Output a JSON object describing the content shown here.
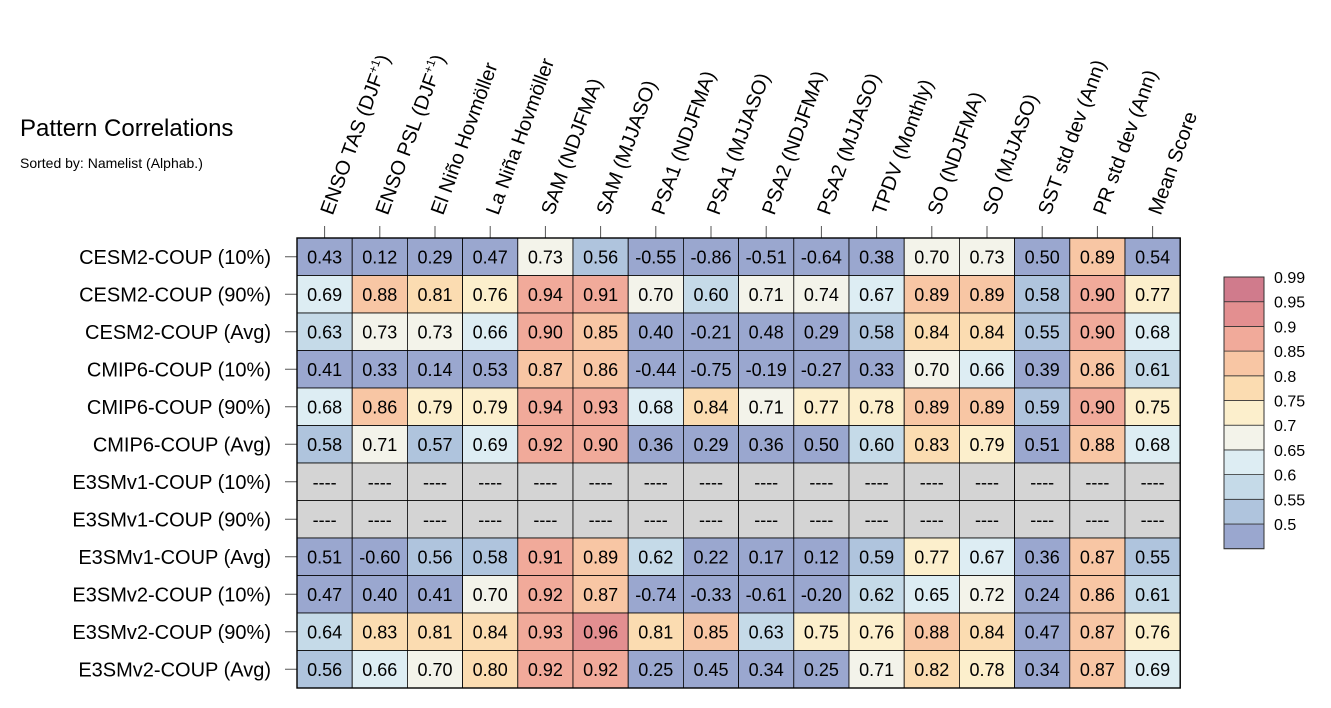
{
  "chart_data": {
    "type": "heatmap",
    "title": "Pattern Correlations",
    "subtitle": "Sorted by: Namelist (Alphab.)",
    "columns": [
      {
        "base": "ENSO TAS (DJF",
        "sup": "+1",
        "tail": ")"
      },
      {
        "base": "ENSO PSL (DJF",
        "sup": "+1",
        "tail": ")"
      },
      {
        "base": "El Niño Hovmöller",
        "sup": "",
        "tail": ""
      },
      {
        "base": "La Niña Hovmöller",
        "sup": "",
        "tail": ""
      },
      {
        "base": "SAM (NDJFMA)",
        "sup": "",
        "tail": ""
      },
      {
        "base": "SAM (MJJASO)",
        "sup": "",
        "tail": ""
      },
      {
        "base": "PSA1 (NDJFMA)",
        "sup": "",
        "tail": ""
      },
      {
        "base": "PSA1 (MJJASO)",
        "sup": "",
        "tail": ""
      },
      {
        "base": "PSA2 (NDJFMA)",
        "sup": "",
        "tail": ""
      },
      {
        "base": "PSA2 (MJJASO)",
        "sup": "",
        "tail": ""
      },
      {
        "base": "TPDV (Monthly)",
        "sup": "",
        "tail": ""
      },
      {
        "base": "SO (NDJFMA)",
        "sup": "",
        "tail": ""
      },
      {
        "base": "SO (MJJASO)",
        "sup": "",
        "tail": ""
      },
      {
        "base": "SST std dev (Ann)",
        "sup": "",
        "tail": ""
      },
      {
        "base": "PR std dev (Ann)",
        "sup": "",
        "tail": ""
      },
      {
        "base": "Mean Score",
        "sup": "",
        "tail": ""
      }
    ],
    "rows": [
      "CESM2-COUP (10%)",
      "CESM2-COUP (90%)",
      "CESM2-COUP (Avg)",
      "CMIP6-COUP (10%)",
      "CMIP6-COUP (90%)",
      "CMIP6-COUP (Avg)",
      "E3SMv1-COUP (10%)",
      "E3SMv1-COUP (90%)",
      "E3SMv1-COUP (Avg)",
      "E3SMv2-COUP (10%)",
      "E3SMv2-COUP (90%)",
      "E3SMv2-COUP (Avg)"
    ],
    "values": [
      [
        0.43,
        0.12,
        0.29,
        0.47,
        0.73,
        0.56,
        -0.55,
        -0.86,
        -0.51,
        -0.64,
        0.38,
        0.7,
        0.73,
        0.5,
        0.89,
        0.54
      ],
      [
        0.69,
        0.88,
        0.81,
        0.76,
        0.94,
        0.91,
        0.7,
        0.6,
        0.71,
        0.74,
        0.67,
        0.89,
        0.89,
        0.58,
        0.9,
        0.77
      ],
      [
        0.63,
        0.73,
        0.73,
        0.66,
        0.9,
        0.85,
        0.4,
        -0.21,
        0.48,
        0.29,
        0.58,
        0.84,
        0.84,
        0.55,
        0.9,
        0.68
      ],
      [
        0.41,
        0.33,
        0.14,
        0.53,
        0.87,
        0.86,
        -0.44,
        -0.75,
        -0.19,
        -0.27,
        0.33,
        0.7,
        0.66,
        0.39,
        0.86,
        0.61
      ],
      [
        0.68,
        0.86,
        0.79,
        0.79,
        0.94,
        0.93,
        0.68,
        0.84,
        0.71,
        0.77,
        0.78,
        0.89,
        0.89,
        0.59,
        0.9,
        0.75
      ],
      [
        0.58,
        0.71,
        0.57,
        0.69,
        0.92,
        0.9,
        0.36,
        0.29,
        0.36,
        0.5,
        0.6,
        0.83,
        0.79,
        0.51,
        0.88,
        0.68
      ],
      [
        null,
        null,
        null,
        null,
        null,
        null,
        null,
        null,
        null,
        null,
        null,
        null,
        null,
        null,
        null,
        null
      ],
      [
        null,
        null,
        null,
        null,
        null,
        null,
        null,
        null,
        null,
        null,
        null,
        null,
        null,
        null,
        null,
        null
      ],
      [
        0.51,
        -0.6,
        0.56,
        0.58,
        0.91,
        0.89,
        0.62,
        0.22,
        0.17,
        0.12,
        0.59,
        0.77,
        0.67,
        0.36,
        0.87,
        0.55
      ],
      [
        0.47,
        0.4,
        0.41,
        0.7,
        0.92,
        0.87,
        -0.74,
        -0.33,
        -0.61,
        -0.2,
        0.62,
        0.65,
        0.72,
        0.24,
        0.86,
        0.61
      ],
      [
        0.64,
        0.83,
        0.81,
        0.84,
        0.93,
        0.96,
        0.81,
        0.85,
        0.63,
        0.75,
        0.76,
        0.88,
        0.84,
        0.47,
        0.87,
        0.76
      ],
      [
        0.56,
        0.66,
        0.7,
        0.8,
        0.92,
        0.92,
        0.25,
        0.45,
        0.34,
        0.25,
        0.71,
        0.82,
        0.78,
        0.34,
        0.87,
        0.69
      ]
    ],
    "missing_label": "----",
    "missing_color": "#d4d4d4",
    "colorbar": {
      "levels": [
        0.5,
        0.55,
        0.6,
        0.65,
        0.7,
        0.75,
        0.8,
        0.85,
        0.9,
        0.95,
        0.99
      ],
      "labels": [
        "0.5",
        "0.55",
        "0.6",
        "0.65",
        "0.7",
        "0.75",
        "0.8",
        "0.85",
        "0.9",
        "0.95",
        "0.99"
      ],
      "colors": [
        "#9aa7cf",
        "#afc4dd",
        "#c5dae8",
        "#ddedf3",
        "#f3f3ea",
        "#fcefcc",
        "#fbdcb1",
        "#f8c6a4",
        "#f1aa9a",
        "#e38f90",
        "#d07b8c"
      ]
    }
  }
}
